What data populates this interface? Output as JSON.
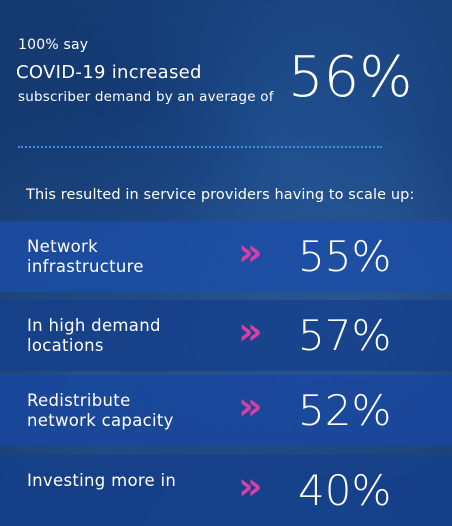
{
  "hero": {
    "line1": "100% say",
    "line2": "COVID-19 increased",
    "line3": "subscriber demand by an average of",
    "stat": "56%"
  },
  "intro": "This resulted in service providers having to scale up:",
  "colors": {
    "background": "#1a4480",
    "row_band": "#1c4ea6",
    "accent_arrow": "#d53fa6",
    "divider": "#3d8fe8"
  },
  "rows": [
    {
      "label_line1": "Network",
      "label_line2": "infrastructure",
      "arrow": "»",
      "value": "55%"
    },
    {
      "label_line1": "In high demand",
      "label_line2": "locations",
      "arrow": "»",
      "value": "57%"
    },
    {
      "label_line1": "Redistribute",
      "label_line2": "network capacity",
      "arrow": "»",
      "value": "52%"
    },
    {
      "label_line1": "Investing more in",
      "label_line2": "",
      "arrow": "»",
      "value": "40%"
    }
  ]
}
